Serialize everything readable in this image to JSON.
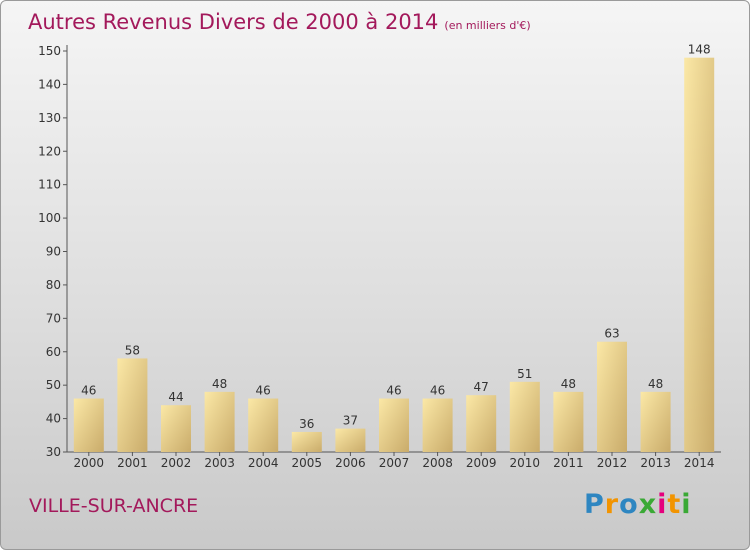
{
  "title": "Autres Revenus Divers de 2000 à 2014",
  "unit_label": "(en milliers d'€)",
  "location": "VILLE-SUR-ANCRE",
  "logo": {
    "letters": [
      "P",
      "r",
      "o",
      "x",
      "i",
      "t",
      "i"
    ],
    "colors": [
      "#2e86c1",
      "#f29400",
      "#2e86c1",
      "#3aa935",
      "#e5007d",
      "#f29400",
      "#3aa935"
    ]
  },
  "colors": {
    "bar_light": "#fbe8a6",
    "bar_dark": "#c9ab6a",
    "text_accent": "#a3195b",
    "axis": "#555555"
  },
  "chart_data": {
    "type": "bar",
    "title": "Autres Revenus Divers de 2000 à 2014",
    "subtitle": "(en milliers d'€)",
    "categories": [
      "2000",
      "2001",
      "2002",
      "2003",
      "2004",
      "2005",
      "2006",
      "2007",
      "2008",
      "2009",
      "2010",
      "2011",
      "2012",
      "2013",
      "2014"
    ],
    "values": [
      46,
      58,
      44,
      48,
      46,
      36,
      37,
      46,
      46,
      47,
      51,
      48,
      63,
      48,
      148
    ],
    "ylim": [
      30,
      150
    ],
    "yticks": [
      30,
      40,
      50,
      60,
      70,
      80,
      90,
      100,
      110,
      120,
      130,
      140,
      150
    ],
    "grid": false,
    "data_labels": true
  }
}
